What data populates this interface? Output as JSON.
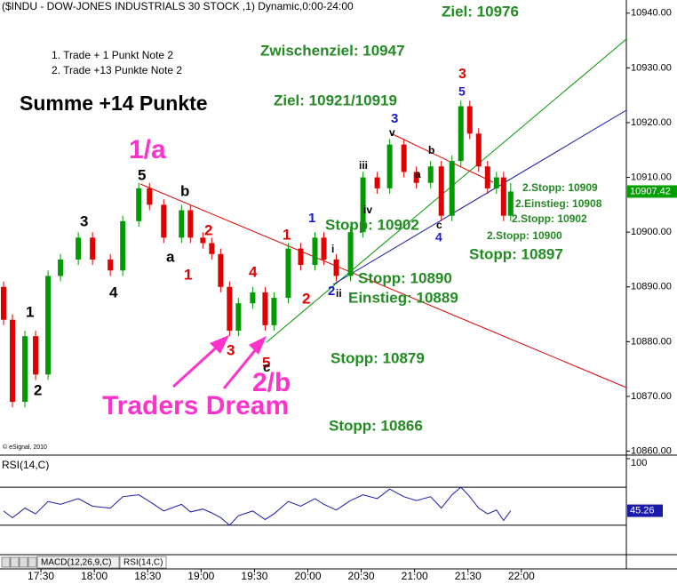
{
  "chart_data": [
    {
      "type": "candlestick",
      "title": "($INDU - DOW-JONES INDUSTRIALS 30 STOCK ,1) Dynamic,0:00-24:00",
      "x": [
        "17:09",
        "17:14",
        "17:21",
        "17:27",
        "17:34",
        "17:41",
        "17:51",
        "17:59",
        "18:09",
        "18:16",
        "18:25",
        "18:31",
        "18:39",
        "18:49",
        "18:54",
        "19:01",
        "19:06",
        "19:11",
        "19:16",
        "19:21",
        "19:29",
        "19:36",
        "19:41",
        "19:49",
        "19:56",
        "20:04",
        "20:09",
        "20:16",
        "20:24",
        "20:31",
        "20:39",
        "20:46",
        "20:54",
        "21:01",
        "21:09",
        "21:15",
        "21:21",
        "21:26",
        "21:31",
        "21:36",
        "21:41",
        "21:46",
        "21:50",
        "21:54"
      ],
      "open": [
        10890,
        10884,
        10869,
        10881,
        10874,
        10892,
        10895,
        10899,
        10895,
        10893,
        10902,
        10908,
        10905,
        10899,
        10904,
        10899,
        10898,
        10896,
        10890,
        10882,
        10887,
        10889,
        10883,
        10888,
        10897,
        10894,
        10899,
        10895,
        10892,
        10900,
        10910,
        10908,
        10916,
        10911,
        10909,
        10912,
        10903,
        10913,
        10923,
        10918,
        10912,
        10908,
        10910,
        10903
      ],
      "high": [
        10891,
        10885,
        10882,
        10882,
        10893,
        10896,
        10900,
        10900,
        10896,
        10903,
        10909,
        10909,
        10906,
        10905,
        10905,
        10900,
        10899,
        10897,
        10891,
        10888,
        10890,
        10890,
        10889,
        10898,
        10898,
        10900,
        10900,
        10896,
        10901,
        10911,
        10911,
        10917,
        10917,
        10912,
        10913,
        10913,
        10914,
        10924,
        10924,
        10919,
        10913,
        10911,
        10911,
        10909
      ],
      "low": [
        10883,
        10868,
        10868,
        10873,
        10873,
        10891,
        10894,
        10894,
        10892,
        10892,
        10901,
        10904,
        10898,
        10898,
        10898,
        10897,
        10895,
        10889,
        10881,
        10881,
        10886,
        10882,
        10882,
        10887,
        10893,
        10893,
        10894,
        10891,
        10891,
        10899,
        10907,
        10907,
        10910,
        10908,
        10908,
        10902,
        10902,
        10912,
        10917,
        10911,
        10907,
        10907,
        10902,
        10902
      ],
      "close": [
        10884,
        10869,
        10881,
        10874,
        10892,
        10895,
        10899,
        10895,
        10893,
        10902,
        10908,
        10905,
        10899,
        10904,
        10899,
        10898,
        10896,
        10890,
        10882,
        10887,
        10889,
        10883,
        10888,
        10897,
        10894,
        10899,
        10895,
        10892,
        10900,
        10910,
        10908,
        10916,
        10911,
        10909,
        10912,
        10903,
        10913,
        10923,
        10918,
        10912,
        10908,
        10910,
        10903,
        10907.42
      ],
      "up_color": "#009900",
      "down_color": "#e00000",
      "xlim": [
        "17:07",
        "22:59"
      ],
      "ylim": [
        10859.6,
        10942.4
      ],
      "yticks": [
        {
          "value": 10860,
          "label": "10860.00"
        },
        {
          "value": 10870,
          "label": "10870.00"
        },
        {
          "value": 10880,
          "label": "10880.00"
        },
        {
          "value": 10890,
          "label": "10890.00"
        },
        {
          "value": 10900,
          "label": "10900.00"
        },
        {
          "value": 10910,
          "label": "10910.00"
        },
        {
          "value": 10920,
          "label": "10920.00"
        },
        {
          "value": 10930,
          "label": "10930.00"
        },
        {
          "value": 10940,
          "label": "10940.00"
        }
      ],
      "annotations": [
        "Ziel: 10976",
        "1. Trade + 1 Punkt Note 2",
        "2. Trade +13 Punkte Note 2",
        "Zwischenziel: 10947",
        "Summe +14 Punkte",
        "Ziel: 10921/10919",
        "1/a",
        "Stopp: 10902",
        "Stopp: 10890",
        "Einstieg: 10889",
        "Stopp: 10879",
        "2/b",
        "Traders Dream",
        "Stopp: 10866",
        "Stopp: 10897",
        "2.Stopp: 10909",
        "2.Einstieg: 10908",
        "2.Stopp: 10902",
        "2.Stopp: 10900",
        "© eSignal, 2010"
      ],
      "wave_labels": [
        "1",
        "2",
        "3",
        "4",
        "5",
        "a",
        "b",
        "1",
        "2",
        "3",
        "4",
        "5",
        "c",
        "1",
        "2",
        "1",
        "i",
        "2",
        "ii",
        "iii",
        "iv",
        "3",
        "v",
        "b",
        "a",
        "c",
        "4",
        "3",
        "5"
      ]
    },
    {
      "type": "line",
      "title": "RSI(14,C)",
      "x": [
        "17:09",
        "17:14",
        "17:21",
        "17:27",
        "17:34",
        "17:41",
        "17:51",
        "17:59",
        "18:09",
        "18:16",
        "18:25",
        "18:31",
        "18:39",
        "18:49",
        "18:54",
        "19:01",
        "19:06",
        "19:11",
        "19:16",
        "19:21",
        "19:29",
        "19:36",
        "19:41",
        "19:49",
        "19:56",
        "20:04",
        "20:09",
        "20:16",
        "20:24",
        "20:31",
        "20:39",
        "20:46",
        "20:54",
        "21:01",
        "21:09",
        "21:15",
        "21:21",
        "21:26",
        "21:31",
        "21:36",
        "21:41",
        "21:46",
        "21:50",
        "21:54"
      ],
      "values": [
        45,
        38,
        48,
        42,
        55,
        52,
        58,
        50,
        48,
        60,
        62,
        55,
        45,
        52,
        44,
        47,
        43,
        38,
        30,
        40,
        45,
        36,
        42,
        55,
        50,
        58,
        52,
        46,
        56,
        62,
        58,
        68,
        60,
        56,
        60,
        48,
        62,
        70,
        60,
        48,
        42,
        46,
        35,
        45.26
      ],
      "color": "#1a1aaa",
      "levels": [
        30,
        70
      ],
      "xlim": [
        "17:07",
        "22:59"
      ],
      "ylim": [
        0,
        100
      ],
      "yticks": [
        100
      ],
      "xticks": [
        "17:30",
        "18:00",
        "18:30",
        "19:00",
        "19:30",
        "20:00",
        "20:30",
        "21:00",
        "21:30",
        "22:00"
      ],
      "tabs": [
        "MACD(12,26,9,C)",
        "RSI(14,C)"
      ]
    }
  ]
}
